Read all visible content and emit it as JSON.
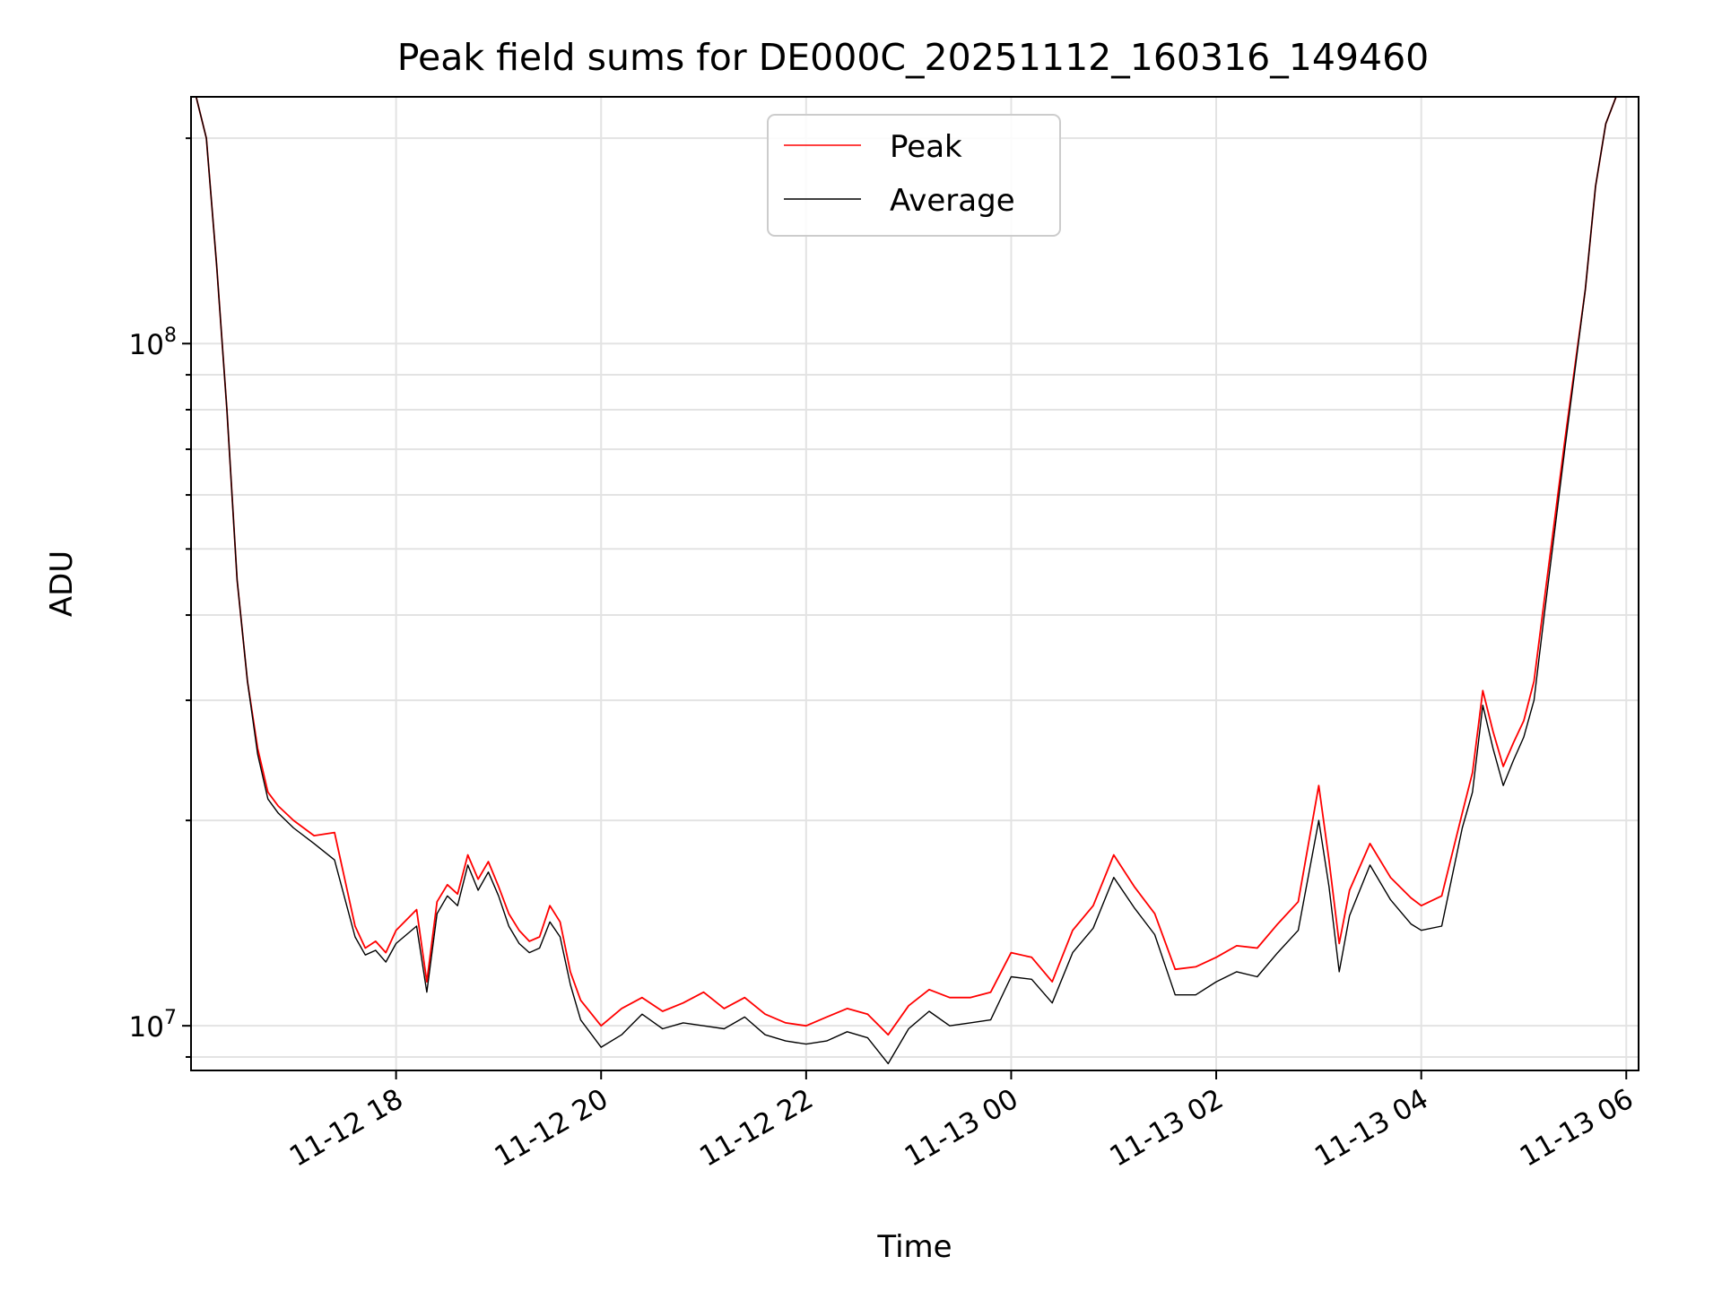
{
  "chart_data": {
    "type": "line",
    "title": "Peak field sums for DE000C_20251112_160316_149460",
    "xlabel": "Time",
    "ylabel": "ADU",
    "yscale": "log",
    "ylim": [
      8600000,
      230000000
    ],
    "xlim_hours": [
      16.0,
      30.12
    ],
    "x_ticks": [
      {
        "hour": 18,
        "label": "11-12 18"
      },
      {
        "hour": 20,
        "label": "11-12 20"
      },
      {
        "hour": 22,
        "label": "11-12 22"
      },
      {
        "hour": 24,
        "label": "11-13 00"
      },
      {
        "hour": 26,
        "label": "11-13 02"
      },
      {
        "hour": 28,
        "label": "11-13 04"
      },
      {
        "hour": 30,
        "label": "11-13 06"
      }
    ],
    "y_ticks": [
      {
        "value": 10000000,
        "base": "10",
        "exp": "7"
      },
      {
        "value": 100000000,
        "base": "10",
        "exp": "8"
      }
    ],
    "grid": true,
    "legend": {
      "position": "top-center",
      "entries": [
        {
          "name": "Peak",
          "color": "#ff0000"
        },
        {
          "name": "Average",
          "color": "#000000"
        }
      ]
    },
    "series": [
      {
        "name": "Average",
        "color": "#000000",
        "x_hours": [
          16.05,
          16.15,
          16.25,
          16.35,
          16.45,
          16.55,
          16.65,
          16.75,
          16.85,
          17.0,
          17.2,
          17.4,
          17.6,
          17.7,
          17.8,
          17.9,
          18.0,
          18.2,
          18.3,
          18.4,
          18.5,
          18.6,
          18.7,
          18.8,
          18.9,
          19.0,
          19.1,
          19.2,
          19.3,
          19.4,
          19.5,
          19.6,
          19.7,
          19.8,
          20.0,
          20.2,
          20.4,
          20.6,
          20.8,
          21.0,
          21.2,
          21.4,
          21.6,
          21.8,
          22.0,
          22.2,
          22.4,
          22.6,
          22.8,
          23.0,
          23.2,
          23.4,
          23.6,
          23.8,
          24.0,
          24.2,
          24.4,
          24.6,
          24.8,
          25.0,
          25.2,
          25.4,
          25.6,
          25.8,
          26.0,
          26.2,
          26.4,
          26.6,
          26.8,
          27.0,
          27.1,
          27.2,
          27.3,
          27.5,
          27.7,
          27.9,
          28.0,
          28.2,
          28.4,
          28.5,
          28.6,
          28.7,
          28.8,
          28.9,
          29.0,
          29.1,
          29.2,
          29.4,
          29.6,
          29.7,
          29.8,
          29.9,
          30.0,
          30.1
        ],
        "values": [
          230000000,
          200000000,
          130000000,
          80000000,
          45000000,
          32000000,
          25000000,
          21500000,
          20500000,
          19500000,
          18500000,
          17500000,
          13500000,
          12700000,
          12900000,
          12400000,
          13200000,
          14000000,
          11200000,
          14600000,
          15500000,
          15000000,
          17200000,
          15800000,
          16800000,
          15500000,
          14000000,
          13200000,
          12800000,
          13000000,
          14200000,
          13500000,
          11500000,
          10200000,
          9300000,
          9700000,
          10400000,
          9900000,
          10100000,
          10000000,
          9900000,
          10300000,
          9700000,
          9500000,
          9400000,
          9500000,
          9800000,
          9600000,
          8800000,
          9900000,
          10500000,
          10000000,
          10100000,
          10200000,
          11800000,
          11700000,
          10800000,
          12800000,
          13900000,
          16500000,
          14900000,
          13600000,
          11100000,
          11100000,
          11600000,
          12000000,
          11800000,
          12800000,
          13800000,
          20000000,
          16000000,
          12000000,
          14500000,
          17200000,
          15300000,
          14100000,
          13800000,
          14000000,
          19500000,
          22000000,
          29500000,
          25500000,
          22500000,
          24500000,
          26500000,
          30000000,
          40000000,
          70000000,
          120000000,
          170000000,
          210000000,
          230000000,
          230000000,
          230000000
        ]
      },
      {
        "name": "Peak",
        "color": "#ff0000",
        "x_hours": [
          16.05,
          16.15,
          16.25,
          16.35,
          16.45,
          16.55,
          16.65,
          16.75,
          16.85,
          17.0,
          17.2,
          17.4,
          17.6,
          17.7,
          17.8,
          17.9,
          18.0,
          18.2,
          18.3,
          18.4,
          18.5,
          18.6,
          18.7,
          18.8,
          18.9,
          19.0,
          19.1,
          19.2,
          19.3,
          19.4,
          19.5,
          19.6,
          19.7,
          19.8,
          20.0,
          20.2,
          20.4,
          20.6,
          20.8,
          21.0,
          21.2,
          21.4,
          21.6,
          21.8,
          22.0,
          22.2,
          22.4,
          22.6,
          22.8,
          23.0,
          23.2,
          23.4,
          23.6,
          23.8,
          24.0,
          24.2,
          24.4,
          24.6,
          24.8,
          25.0,
          25.2,
          25.4,
          25.6,
          25.8,
          26.0,
          26.2,
          26.4,
          26.6,
          26.8,
          27.0,
          27.1,
          27.2,
          27.3,
          27.5,
          27.7,
          27.9,
          28.0,
          28.2,
          28.4,
          28.5,
          28.6,
          28.7,
          28.8,
          28.9,
          29.0,
          29.1,
          29.2,
          29.4,
          29.6,
          29.7,
          29.8,
          29.9,
          30.0,
          30.1
        ],
        "values": [
          230000000,
          200000000,
          130000000,
          80000000,
          45000000,
          32000000,
          25500000,
          22000000,
          21000000,
          20000000,
          19000000,
          19200000,
          14000000,
          13000000,
          13300000,
          12800000,
          13800000,
          14800000,
          11600000,
          15200000,
          16100000,
          15600000,
          17800000,
          16400000,
          17400000,
          16000000,
          14600000,
          13800000,
          13300000,
          13500000,
          15000000,
          14200000,
          12000000,
          10900000,
          10000000,
          10600000,
          11000000,
          10500000,
          10800000,
          11200000,
          10600000,
          11000000,
          10400000,
          10100000,
          10000000,
          10300000,
          10600000,
          10400000,
          9700000,
          10700000,
          11300000,
          11000000,
          11000000,
          11200000,
          12800000,
          12600000,
          11600000,
          13800000,
          15000000,
          17800000,
          16000000,
          14600000,
          12100000,
          12200000,
          12600000,
          13100000,
          13000000,
          14100000,
          15200000,
          22500000,
          17500000,
          13200000,
          15800000,
          18500000,
          16500000,
          15400000,
          15000000,
          15500000,
          20500000,
          23500000,
          31000000,
          27000000,
          24000000,
          26000000,
          28000000,
          32000000,
          42000000,
          72000000,
          120000000,
          170000000,
          210000000,
          230000000,
          230000000,
          230000000
        ]
      }
    ]
  }
}
